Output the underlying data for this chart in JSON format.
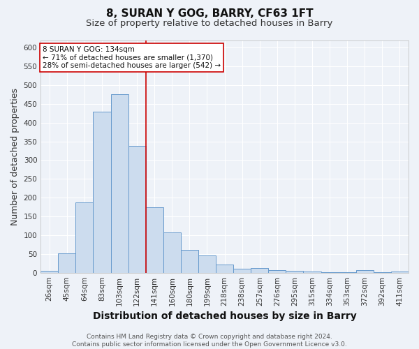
{
  "title": "8, SURAN Y GOG, BARRY, CF63 1FT",
  "subtitle": "Size of property relative to detached houses in Barry",
  "xlabel": "Distribution of detached houses by size in Barry",
  "ylabel": "Number of detached properties",
  "categories": [
    "26sqm",
    "45sqm",
    "64sqm",
    "83sqm",
    "103sqm",
    "122sqm",
    "141sqm",
    "160sqm",
    "180sqm",
    "199sqm",
    "218sqm",
    "238sqm",
    "257sqm",
    "276sqm",
    "295sqm",
    "315sqm",
    "334sqm",
    "353sqm",
    "372sqm",
    "392sqm",
    "411sqm"
  ],
  "values": [
    5,
    51,
    188,
    430,
    475,
    338,
    175,
    108,
    60,
    45,
    22,
    10,
    13,
    6,
    5,
    4,
    2,
    1,
    6,
    2,
    3
  ],
  "bar_color": "#ccdcee",
  "bar_edge_color": "#6699cc",
  "vline_x": 5.5,
  "vline_color": "#cc0000",
  "annotation_text": "8 SURAN Y GOG: 134sqm\n← 71% of detached houses are smaller (1,370)\n28% of semi-detached houses are larger (542) →",
  "annotation_box_color": "#ffffff",
  "annotation_box_edge": "#cc0000",
  "ylim": [
    0,
    620
  ],
  "yticks": [
    0,
    50,
    100,
    150,
    200,
    250,
    300,
    350,
    400,
    450,
    500,
    550,
    600
  ],
  "footer": "Contains HM Land Registry data © Crown copyright and database right 2024.\nContains public sector information licensed under the Open Government Licence v3.0.",
  "bg_color": "#eef2f8",
  "grid_color": "#ffffff",
  "title_fontsize": 11,
  "subtitle_fontsize": 9.5,
  "axis_label_fontsize": 9,
  "tick_fontsize": 7.5,
  "footer_fontsize": 6.5
}
